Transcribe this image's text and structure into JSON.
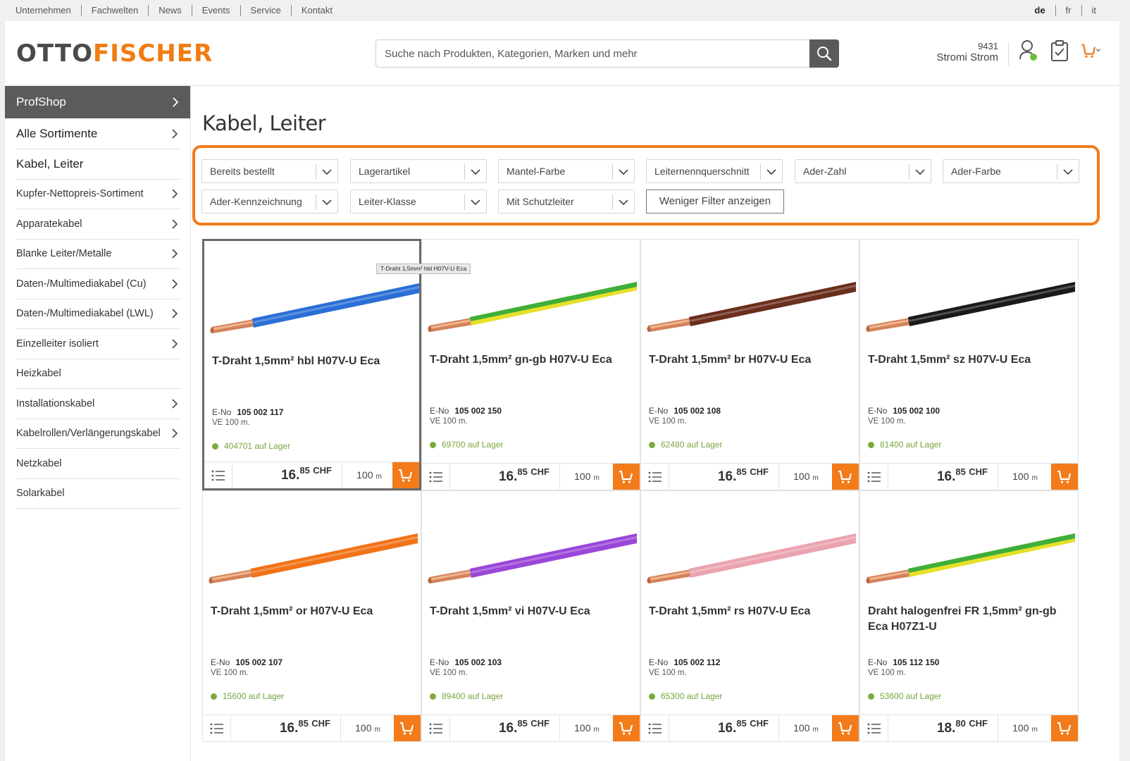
{
  "topbar": {
    "links": [
      "Unternehmen",
      "Fachwelten",
      "News",
      "Events",
      "Service",
      "Kontakt"
    ],
    "langs": [
      "de",
      "fr",
      "it"
    ]
  },
  "header": {
    "logo_left": "OTTO",
    "logo_right": "FISCHER",
    "search_placeholder": "Suche nach Produkten, Kategorien, Marken und mehr",
    "account_number": "9431",
    "account_name": "Stromi Strom",
    "icons": [
      "user-icon",
      "clipboard-icon",
      "cart-icon"
    ]
  },
  "sidebar": {
    "head": "ProfShop",
    "items": [
      {
        "label": "Alle Sortimente",
        "chevron": true
      },
      {
        "label": "Kabel, Leiter",
        "chevron": false
      },
      {
        "label": "Kupfer-Nettopreis-Sortiment",
        "chevron": true
      },
      {
        "label": "Apparatekabel",
        "chevron": true
      },
      {
        "label": "Blanke Leiter/Metalle",
        "chevron": true
      },
      {
        "label": "Daten-/Multimediakabel (Cu)",
        "chevron": true
      },
      {
        "label": "Daten-/Multimediakabel (LWL)",
        "chevron": true
      },
      {
        "label": "Einzelleiter isoliert",
        "chevron": true
      },
      {
        "label": "Heizkabel",
        "chevron": false
      },
      {
        "label": "Installationskabel",
        "chevron": true
      },
      {
        "label": "Kabelrollen/Verlängerungskabel",
        "chevron": true
      },
      {
        "label": "Netzkabel",
        "chevron": false
      },
      {
        "label": "Solarkabel",
        "chevron": false
      }
    ]
  },
  "main": {
    "title": "Kabel, Leiter",
    "filters": [
      "Bereits bestellt",
      "Lagerartikel",
      "Mantel-Farbe",
      "Leiternennquerschnitt",
      "Ader-Zahl",
      "Ader-Farbe",
      "Ader-Kennzeichnung",
      "Leiter-Klasse",
      "Mit Schutzleiter"
    ],
    "less_filters": "Weniger Filter anzeigen",
    "tooltip": "T-Draht 1,5mm² hbl H07V-U Eca",
    "eno_label": "E-No",
    "qty_unit": "m",
    "products": [
      {
        "name": "T-Draht 1,5mm² hbl H07V-U Eca",
        "eno": "105 002 117",
        "ve": "VE 100 m.",
        "stock": "404701 auf Lager",
        "price_int": "16.",
        "price_dec": "85",
        "currency": "CHF",
        "qty": "100",
        "color": "#2a6fd6",
        "color2": ""
      },
      {
        "name": "T-Draht 1,5mm² gn-gb H07V-U Eca",
        "eno": "105 002 150",
        "ve": "VE 100 m.",
        "stock": "69700 auf Lager",
        "price_int": "16.",
        "price_dec": "85",
        "currency": "CHF",
        "qty": "100",
        "color": "#e6e02a",
        "color2": "#3fae3a"
      },
      {
        "name": "T-Draht 1,5mm² br H07V-U Eca",
        "eno": "105 002 108",
        "ve": "VE 100 m.",
        "stock": "62480 auf Lager",
        "price_int": "16.",
        "price_dec": "85",
        "currency": "CHF",
        "qty": "100",
        "color": "#6b2e1c",
        "color2": ""
      },
      {
        "name": "T-Draht 1,5mm² sz H07V-U Eca",
        "eno": "105 002 100",
        "ve": "VE 100 m.",
        "stock": "81400 auf Lager",
        "price_int": "16.",
        "price_dec": "85",
        "currency": "CHF",
        "qty": "100",
        "color": "#1a1a1a",
        "color2": ""
      },
      {
        "name": "T-Draht 1,5mm² or H07V-U Eca",
        "eno": "105 002 107",
        "ve": "VE 100 m.",
        "stock": "15600 auf Lager",
        "price_int": "16.",
        "price_dec": "85",
        "currency": "CHF",
        "qty": "100",
        "color": "#f27216",
        "color2": ""
      },
      {
        "name": "T-Draht 1,5mm² vi H07V-U Eca",
        "eno": "105 002 103",
        "ve": "VE 100 m.",
        "stock": "89400 auf Lager",
        "price_int": "16.",
        "price_dec": "85",
        "currency": "CHF",
        "qty": "100",
        "color": "#9a46d8",
        "color2": ""
      },
      {
        "name": "T-Draht 1,5mm² rs H07V-U Eca",
        "eno": "105 002 112",
        "ve": "VE 100 m.",
        "stock": "65300 auf Lager",
        "price_int": "16.",
        "price_dec": "85",
        "currency": "CHF",
        "qty": "100",
        "color": "#eba3b0",
        "color2": ""
      },
      {
        "name": "Draht halogenfrei FR 1,5mm² gn-gb Eca H07Z1-U",
        "eno": "105 112 150",
        "ve": "VE 100 m.",
        "stock": "53600 auf Lager",
        "price_int": "18.",
        "price_dec": "80",
        "currency": "CHF",
        "qty": "100",
        "color": "#e6e02a",
        "color2": "#3fae3a"
      }
    ]
  },
  "colors": {
    "accent": "#f37b1a",
    "sidebar_head": "#5b5b5b",
    "stock_green": "#7aab3a"
  }
}
